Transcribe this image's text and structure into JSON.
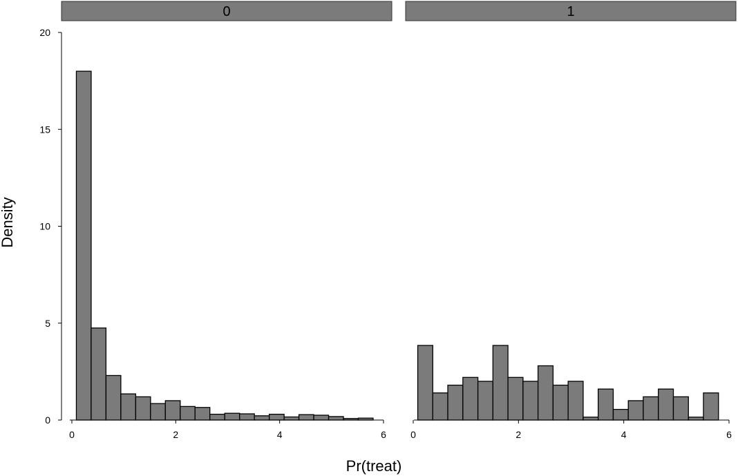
{
  "chart_data": {
    "type": "bar",
    "subtype": "histogram",
    "xlabel": "Pr(treat)",
    "ylabel": "Density",
    "ylim": [
      0,
      20
    ],
    "yticks": [
      "0",
      "5",
      "10",
      "15",
      "20"
    ],
    "xlim": [
      0,
      6
    ],
    "xticks": [
      "0",
      "2",
      "4",
      "6"
    ],
    "bin_width": 0.286,
    "bar_color": "#7b7b7b",
    "edge_color": "#000000",
    "panels": [
      {
        "label": "0",
        "bins": [
          {
            "x0": 0.086,
            "value": 18.0
          },
          {
            "x0": 0.371,
            "value": 4.75
          },
          {
            "x0": 0.657,
            "value": 2.3
          },
          {
            "x0": 0.943,
            "value": 1.35
          },
          {
            "x0": 1.229,
            "value": 1.2
          },
          {
            "x0": 1.514,
            "value": 0.85
          },
          {
            "x0": 1.8,
            "value": 1.0
          },
          {
            "x0": 2.086,
            "value": 0.7
          },
          {
            "x0": 2.371,
            "value": 0.65
          },
          {
            "x0": 2.657,
            "value": 0.3
          },
          {
            "x0": 2.943,
            "value": 0.35
          },
          {
            "x0": 3.229,
            "value": 0.32
          },
          {
            "x0": 3.514,
            "value": 0.22
          },
          {
            "x0": 3.8,
            "value": 0.3
          },
          {
            "x0": 4.086,
            "value": 0.16
          },
          {
            "x0": 4.371,
            "value": 0.28
          },
          {
            "x0": 4.657,
            "value": 0.25
          },
          {
            "x0": 4.943,
            "value": 0.18
          },
          {
            "x0": 5.229,
            "value": 0.08
          },
          {
            "x0": 5.514,
            "value": 0.1
          }
        ]
      },
      {
        "label": "1",
        "bins": [
          {
            "x0": 0.086,
            "value": 3.85
          },
          {
            "x0": 0.371,
            "value": 1.4
          },
          {
            "x0": 0.657,
            "value": 1.8
          },
          {
            "x0": 0.943,
            "value": 2.2
          },
          {
            "x0": 1.229,
            "value": 2.0
          },
          {
            "x0": 1.514,
            "value": 3.85
          },
          {
            "x0": 1.8,
            "value": 2.2
          },
          {
            "x0": 2.086,
            "value": 2.0
          },
          {
            "x0": 2.371,
            "value": 2.8
          },
          {
            "x0": 2.657,
            "value": 1.8
          },
          {
            "x0": 2.943,
            "value": 2.0
          },
          {
            "x0": 3.229,
            "value": 0.15
          },
          {
            "x0": 3.514,
            "value": 1.6
          },
          {
            "x0": 3.8,
            "value": 0.55
          },
          {
            "x0": 4.086,
            "value": 1.0
          },
          {
            "x0": 4.371,
            "value": 1.2
          },
          {
            "x0": 4.657,
            "value": 1.6
          },
          {
            "x0": 4.943,
            "value": 1.2
          },
          {
            "x0": 5.229,
            "value": 0.15
          },
          {
            "x0": 5.514,
            "value": 1.4
          }
        ]
      }
    ]
  }
}
